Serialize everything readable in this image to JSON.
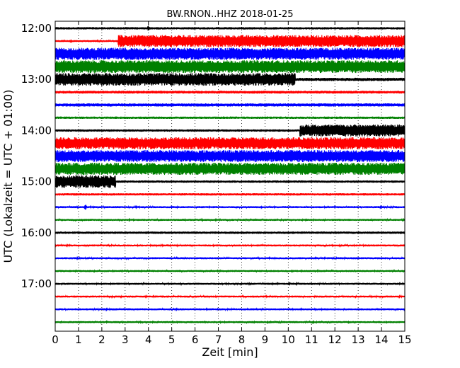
{
  "chart_data": {
    "type": "line",
    "title": "BW.RNON..HHZ 2018-01-25",
    "xlabel": "Zeit  [min]",
    "ylabel": "UTC (Lokalzeit = UTC + 01:00)",
    "xlim": [
      0,
      15
    ],
    "x_ticks": [
      "0",
      "1",
      "2",
      "3",
      "4",
      "5",
      "6",
      "7",
      "8",
      "9",
      "10",
      "11",
      "12",
      "13",
      "14",
      "15"
    ],
    "y_ticks": [
      {
        "label": "12:00",
        "row": 0
      },
      {
        "label": "13:00",
        "row": 4
      },
      {
        "label": "14:00",
        "row": 8
      },
      {
        "label": "15:00",
        "row": 12
      },
      {
        "label": "16:00",
        "row": 16
      },
      {
        "label": "17:00",
        "row": 20
      }
    ],
    "grid": "vertical dotted at each minute",
    "colors": [
      "#000000",
      "#ff0000",
      "#0000ff",
      "#008000"
    ],
    "traces": [
      {
        "start": "12:00",
        "color": "#000000",
        "amplitude": [
          {
            "from": 0,
            "to": 15,
            "level": 0.18
          }
        ],
        "events": [
          {
            "at": 4.0,
            "level": 0.5
          }
        ]
      },
      {
        "start": "12:15",
        "color": "#ff0000",
        "amplitude": [
          {
            "from": 0,
            "to": 2.7,
            "level": 0.15
          },
          {
            "from": 2.7,
            "to": 15,
            "level": 0.95
          }
        ]
      },
      {
        "start": "12:30",
        "color": "#0000ff",
        "amplitude": [
          {
            "from": 0,
            "to": 15,
            "level": 0.95
          }
        ]
      },
      {
        "start": "12:45",
        "color": "#008000",
        "amplitude": [
          {
            "from": 0,
            "to": 15,
            "level": 1.0
          }
        ]
      },
      {
        "start": "13:00",
        "color": "#000000",
        "amplitude": [
          {
            "from": 0,
            "to": 10.3,
            "level": 1.0
          },
          {
            "from": 10.3,
            "to": 15,
            "level": 0.25
          }
        ]
      },
      {
        "start": "13:15",
        "color": "#ff0000",
        "amplitude": [
          {
            "from": 0,
            "to": 15,
            "level": 0.22
          }
        ]
      },
      {
        "start": "13:30",
        "color": "#0000ff",
        "amplitude": [
          {
            "from": 0,
            "to": 15,
            "level": 0.25
          }
        ]
      },
      {
        "start": "13:45",
        "color": "#008000",
        "amplitude": [
          {
            "from": 0,
            "to": 15,
            "level": 0.18
          }
        ]
      },
      {
        "start": "14:00",
        "color": "#000000",
        "amplitude": [
          {
            "from": 0,
            "to": 10.5,
            "level": 0.18
          },
          {
            "from": 10.5,
            "to": 15,
            "level": 0.95
          }
        ]
      },
      {
        "start": "14:15",
        "color": "#ff0000",
        "amplitude": [
          {
            "from": 0,
            "to": 15,
            "level": 0.95
          }
        ]
      },
      {
        "start": "14:30",
        "color": "#0000ff",
        "amplitude": [
          {
            "from": 0,
            "to": 15,
            "level": 0.95
          }
        ]
      },
      {
        "start": "14:45",
        "color": "#008000",
        "amplitude": [
          {
            "from": 0,
            "to": 15,
            "level": 0.95
          }
        ]
      },
      {
        "start": "15:00",
        "color": "#000000",
        "amplitude": [
          {
            "from": 0,
            "to": 2.6,
            "level": 1.0
          },
          {
            "from": 2.6,
            "to": 15,
            "level": 0.18
          }
        ]
      },
      {
        "start": "15:15",
        "color": "#ff0000",
        "amplitude": [
          {
            "from": 0,
            "to": 15,
            "level": 0.18
          }
        ]
      },
      {
        "start": "15:30",
        "color": "#0000ff",
        "amplitude": [
          {
            "from": 0,
            "to": 15,
            "level": 0.15
          }
        ],
        "events": [
          {
            "at": 1.3,
            "level": 0.55
          }
        ]
      },
      {
        "start": "15:45",
        "color": "#008000",
        "amplitude": [
          {
            "from": 0,
            "to": 15,
            "level": 0.15
          }
        ]
      },
      {
        "start": "16:00",
        "color": "#000000",
        "amplitude": [
          {
            "from": 0,
            "to": 15,
            "level": 0.18
          }
        ]
      },
      {
        "start": "16:15",
        "color": "#ff0000",
        "amplitude": [
          {
            "from": 0,
            "to": 15,
            "level": 0.15
          }
        ]
      },
      {
        "start": "16:30",
        "color": "#0000ff",
        "amplitude": [
          {
            "from": 0,
            "to": 15,
            "level": 0.15
          }
        ]
      },
      {
        "start": "16:45",
        "color": "#008000",
        "amplitude": [
          {
            "from": 0,
            "to": 15,
            "level": 0.15
          }
        ]
      },
      {
        "start": "17:00",
        "color": "#000000",
        "amplitude": [
          {
            "from": 0,
            "to": 15,
            "level": 0.15
          }
        ]
      },
      {
        "start": "17:15",
        "color": "#ff0000",
        "amplitude": [
          {
            "from": 0,
            "to": 15,
            "level": 0.15
          }
        ]
      },
      {
        "start": "17:30",
        "color": "#0000ff",
        "amplitude": [
          {
            "from": 0,
            "to": 15,
            "level": 0.15
          }
        ]
      },
      {
        "start": "17:45",
        "color": "#008000",
        "amplitude": [
          {
            "from": 0,
            "to": 15,
            "level": 0.15
          }
        ]
      }
    ]
  }
}
